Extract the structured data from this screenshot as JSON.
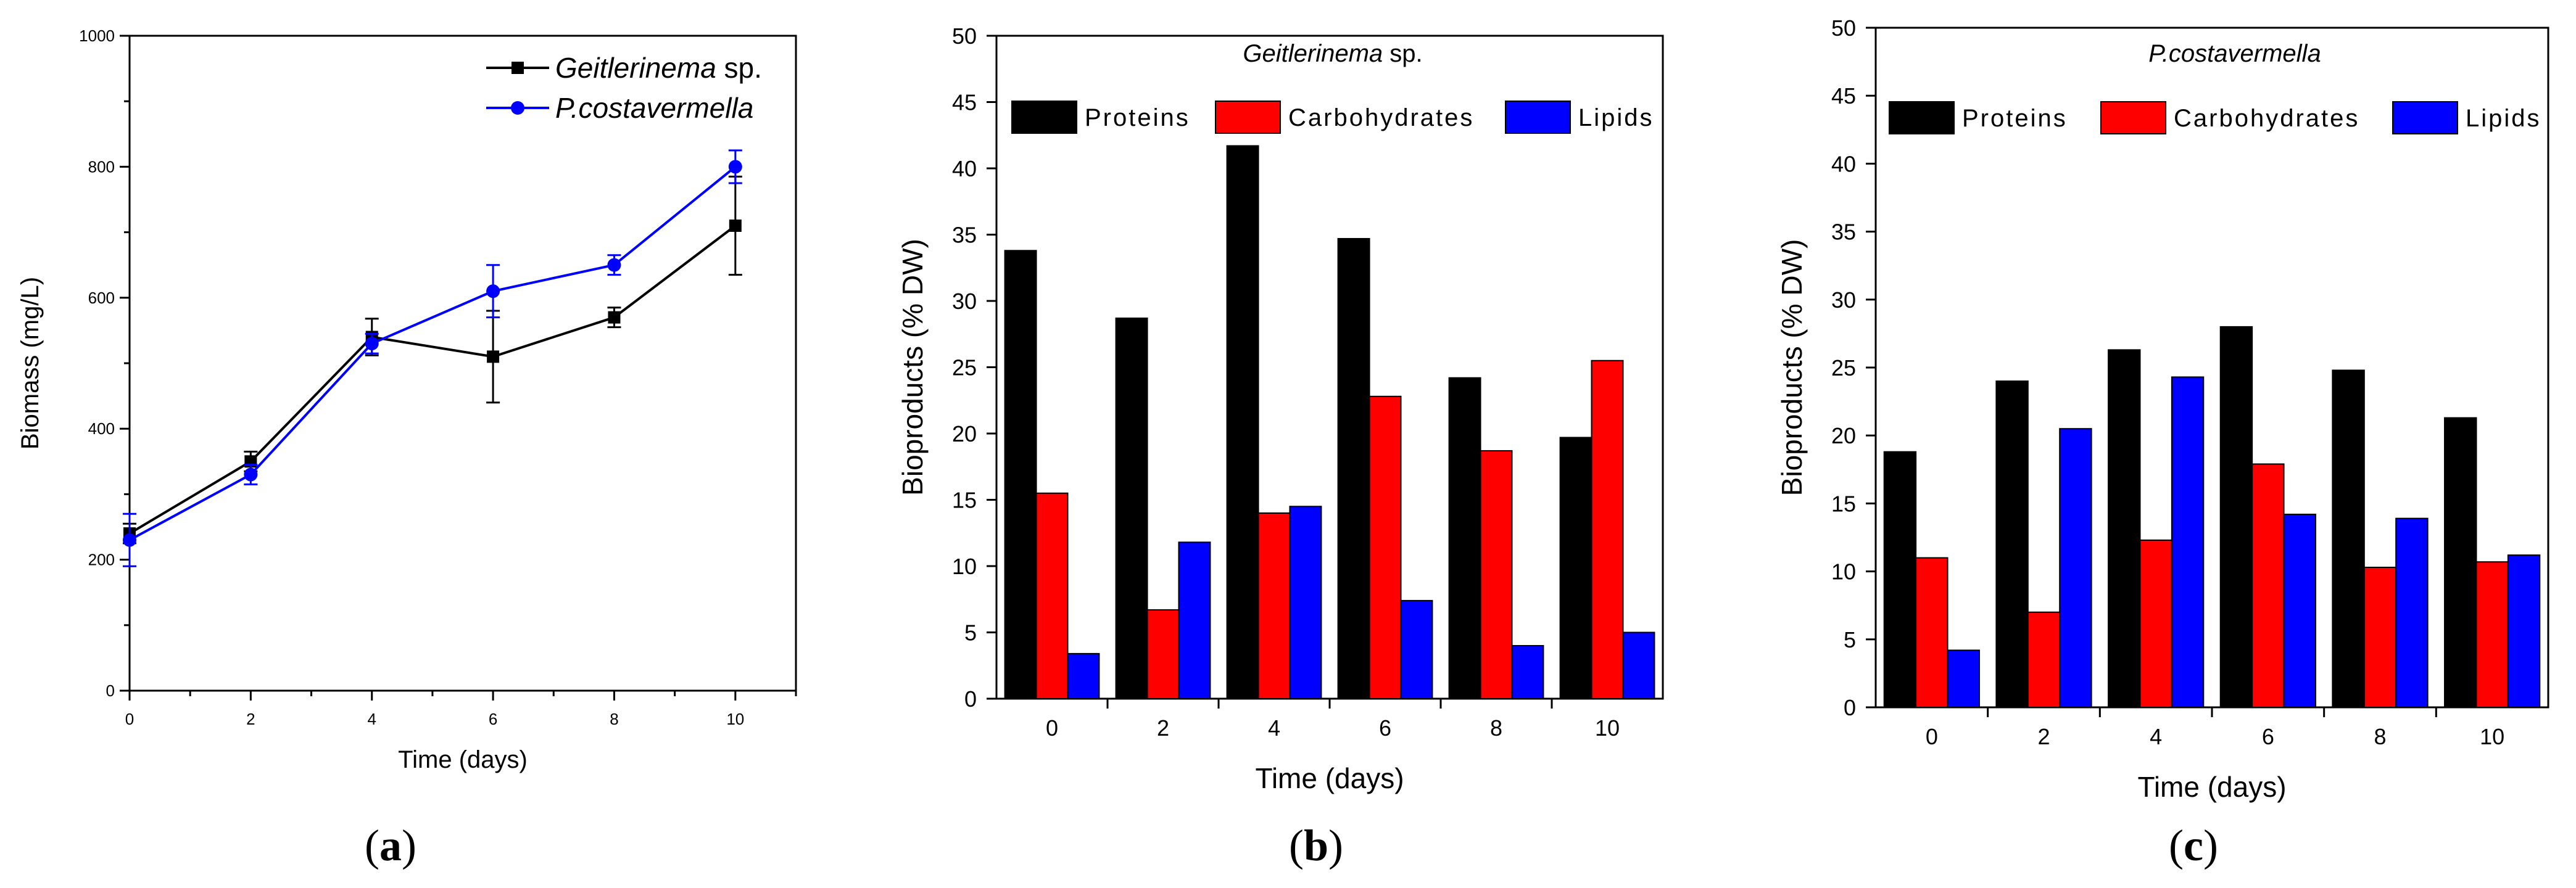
{
  "figure": {
    "panel_captions": [
      {
        "open": "(",
        "letter": "a",
        "close": ")"
      },
      {
        "open": "(",
        "letter": "b",
        "close": ")"
      },
      {
        "open": "(",
        "letter": "c",
        "close": ")"
      }
    ]
  },
  "chart_data": [
    {
      "type": "line",
      "xlabel": "Time (days)",
      "ylabel": "Biomass (mg/L)",
      "xlim": [
        0,
        11
      ],
      "ylim": [
        0,
        1000
      ],
      "xticks": [
        0,
        2,
        4,
        6,
        8,
        10
      ],
      "yticks": [
        0,
        200,
        400,
        600,
        800,
        1000
      ],
      "series": [
        {
          "name": "Geitlerinema sp.",
          "legend_italic": "Geitlerinema",
          "legend_rest": " sp.",
          "color": "#000000",
          "marker": "square",
          "x": [
            0,
            2,
            4,
            6,
            8,
            10
          ],
          "y": [
            240,
            350,
            540,
            510,
            570,
            710
          ],
          "err": [
            15,
            15,
            28,
            70,
            15,
            75
          ]
        },
        {
          "name": "P.costavermella",
          "legend_italic": "P.costavermella",
          "legend_rest": "",
          "color": "#0000ff",
          "marker": "circle",
          "x": [
            0,
            2,
            4,
            6,
            8,
            10
          ],
          "y": [
            230,
            330,
            530,
            610,
            650,
            800
          ],
          "err": [
            40,
            15,
            15,
            40,
            15,
            25
          ]
        }
      ]
    },
    {
      "type": "bar",
      "title": "Geitlerinema sp.",
      "title_italic": "Geitlerinema",
      "title_rest": " sp.",
      "xlabel": "Time (days)",
      "ylabel": "Bioproducts (% DW)",
      "categories": [
        "0",
        "2",
        "4",
        "6",
        "8",
        "10"
      ],
      "ylim": [
        0,
        50
      ],
      "yticks": [
        0,
        5,
        10,
        15,
        20,
        25,
        30,
        35,
        40,
        45,
        50
      ],
      "series": [
        {
          "name": "Proteins",
          "color": "#000000",
          "values": [
            33.8,
            28.7,
            41.7,
            34.7,
            24.2,
            19.7
          ]
        },
        {
          "name": "Carbohydrates",
          "color": "#ff0000",
          "values": [
            15.5,
            6.7,
            14.0,
            22.8,
            18.7,
            25.5
          ]
        },
        {
          "name": "Lipids",
          "color": "#0000ff",
          "values": [
            3.4,
            11.8,
            14.5,
            7.4,
            4.0,
            5.0
          ]
        }
      ]
    },
    {
      "type": "bar",
      "title": "P.costavermella",
      "title_italic": "P.costavermella",
      "title_rest": "",
      "xlabel": "Time (days)",
      "ylabel": "Bioproducts (% DW)",
      "categories": [
        "0",
        "2",
        "4",
        "6",
        "8",
        "10"
      ],
      "ylim": [
        0,
        50
      ],
      "yticks": [
        0,
        5,
        10,
        15,
        20,
        25,
        30,
        35,
        40,
        45,
        50
      ],
      "series": [
        {
          "name": "Proteins",
          "color": "#000000",
          "values": [
            18.8,
            24.0,
            26.3,
            28.0,
            24.8,
            21.3
          ]
        },
        {
          "name": "Carbohydrates",
          "color": "#ff0000",
          "values": [
            11.0,
            7.0,
            12.3,
            17.9,
            10.3,
            10.7
          ]
        },
        {
          "name": "Lipids",
          "color": "#0000ff",
          "values": [
            4.2,
            20.5,
            24.3,
            14.2,
            13.9,
            11.2
          ]
        }
      ]
    }
  ]
}
